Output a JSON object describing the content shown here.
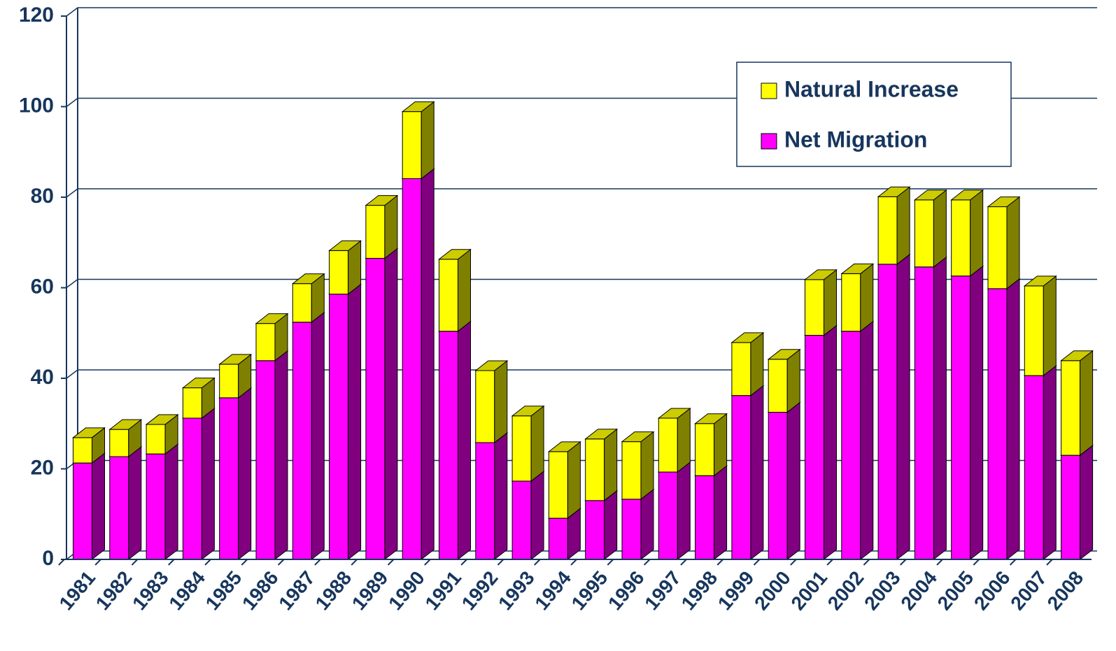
{
  "chart_data": {
    "type": "bar3d_stacked",
    "categories": [
      "1981",
      "1982",
      "1983",
      "1984",
      "1985",
      "1986",
      "1987",
      "1988",
      "1989",
      "1990",
      "1991",
      "1992",
      "1993",
      "1994",
      "1995",
      "1996",
      "1997",
      "1998",
      "1999",
      "2000",
      "2001",
      "2002",
      "2003",
      "2004",
      "2005",
      "2006",
      "2007",
      "2008"
    ],
    "series": [
      {
        "name": "Net Migration",
        "color": "#ff00ff",
        "values": [
          21.3,
          22.7,
          23.3,
          31.2,
          35.7,
          43.9,
          52.4,
          58.6,
          66.5,
          84.1,
          50.4,
          25.8,
          17.3,
          9.1,
          13.0,
          13.3,
          19.3,
          18.5,
          36.2,
          32.5,
          49.5,
          50.4,
          65.2,
          64.6,
          62.6,
          59.8,
          40.6,
          23.0
        ]
      },
      {
        "name": "Natural Increase",
        "color": "#ffff00",
        "values": [
          5.6,
          6.0,
          6.5,
          6.7,
          7.4,
          8.2,
          8.5,
          9.6,
          11.7,
          14.8,
          15.9,
          15.9,
          14.4,
          14.7,
          13.6,
          12.7,
          11.9,
          11.5,
          11.7,
          11.7,
          12.3,
          12.7,
          14.9,
          14.8,
          16.8,
          18.1,
          19.8,
          20.9
        ]
      }
    ],
    "ylim": [
      0,
      120
    ],
    "yticks": [
      0,
      20,
      40,
      60,
      80,
      100,
      120
    ],
    "grid": true,
    "legend": "upper right"
  }
}
